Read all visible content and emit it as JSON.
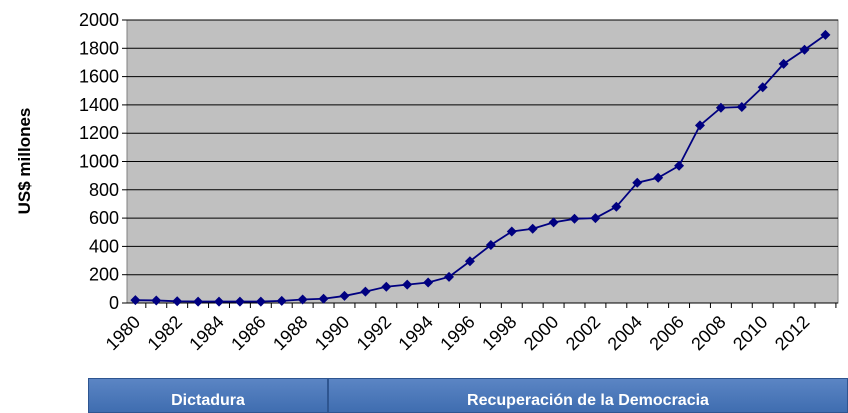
{
  "chart_data": {
    "type": "line",
    "ylabel": "US$ millones",
    "xlabel": "",
    "ylim": [
      0,
      2000
    ],
    "yticks": [
      "0",
      "200",
      "400",
      "600",
      "800",
      "1000",
      "1200",
      "1400",
      "1600",
      "1800",
      "2000"
    ],
    "xticks": [
      "1980",
      "1982",
      "1984",
      "1986",
      "1988",
      "1990",
      "1992",
      "1994",
      "1996",
      "1998",
      "2000",
      "2002",
      "2004",
      "2006",
      "2008",
      "2010",
      "2012"
    ],
    "x": [
      1980,
      1981,
      1982,
      1983,
      1984,
      1985,
      1986,
      1987,
      1988,
      1989,
      1990,
      1991,
      1992,
      1993,
      1994,
      1995,
      1996,
      1997,
      1998,
      1999,
      2000,
      2001,
      2002,
      2003,
      2004,
      2005,
      2006,
      2007,
      2008,
      2009,
      2010,
      2011,
      2012,
      2013
    ],
    "series": [
      {
        "values": [
          20,
          18,
          12,
          10,
          10,
          10,
          10,
          15,
          25,
          30,
          50,
          80,
          115,
          130,
          145,
          185,
          295,
          410,
          505,
          525,
          570,
          595,
          600,
          680,
          850,
          885,
          970,
          1255,
          1380,
          1385,
          1525,
          1690,
          1790,
          1895
        ],
        "color": "#000080"
      }
    ],
    "plot_background": "#c0c0c0",
    "grid": true
  },
  "periods": [
    {
      "label": "Dictadura"
    },
    {
      "label": "Recuperación de la Democracia"
    }
  ]
}
